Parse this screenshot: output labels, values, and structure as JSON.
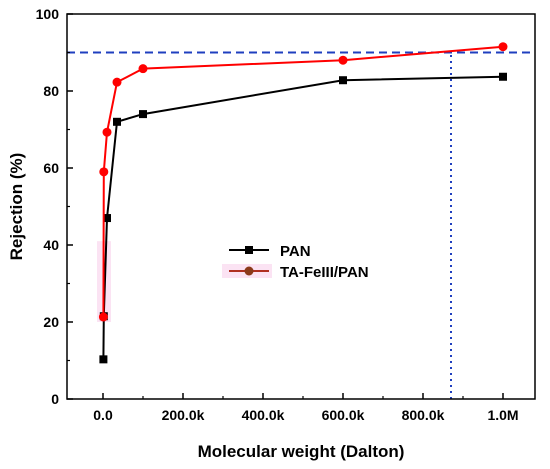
{
  "chart_data": {
    "type": "line",
    "xlabel": "Molecular weight (Dalton)",
    "ylabel": "Rejection (%)",
    "xlim": [
      -90000,
      1080000
    ],
    "ylim": [
      0,
      100
    ],
    "x_ticks": [
      {
        "value": 0,
        "label": "0.0"
      },
      {
        "value": 200000,
        "label": "200.0k"
      },
      {
        "value": 400000,
        "label": "400.0k"
      },
      {
        "value": 600000,
        "label": "600.0k"
      },
      {
        "value": 800000,
        "label": "800.0k"
      },
      {
        "value": 1000000,
        "label": "1.0M"
      }
    ],
    "y_ticks": [
      {
        "value": 0,
        "label": "0"
      },
      {
        "value": 20,
        "label": "20"
      },
      {
        "value": 40,
        "label": "40"
      },
      {
        "value": 60,
        "label": "60"
      },
      {
        "value": 80,
        "label": "80"
      },
      {
        "value": 100,
        "label": "100"
      }
    ],
    "series": [
      {
        "name": "PAN",
        "color": "#000000",
        "marker": "square",
        "x": [
          1000,
          2000,
          10000,
          35000,
          100000,
          600000,
          1000000
        ],
        "y": [
          10.3,
          21.5,
          47.0,
          72.0,
          74.0,
          82.8,
          83.7
        ]
      },
      {
        "name": "TA-FeIII/PAN",
        "color": "#ff0000",
        "legend_marker_color": "#8b3a1a",
        "marker": "circle",
        "x": [
          1000,
          2000,
          10000,
          35000,
          100000,
          600000,
          1000000
        ],
        "y": [
          21.3,
          59.0,
          69.3,
          82.3,
          85.8,
          88.0,
          91.5
        ]
      }
    ],
    "reference_lines": [
      {
        "orientation": "horizontal",
        "value": 90,
        "color": "#1f3fbf",
        "style": "dashed"
      },
      {
        "orientation": "vertical",
        "value": 870000,
        "color": "#1f3fbf",
        "style": "dotted",
        "from": 0,
        "to": 90
      }
    ],
    "legend": {
      "placement": "center-left"
    },
    "grid": false
  }
}
